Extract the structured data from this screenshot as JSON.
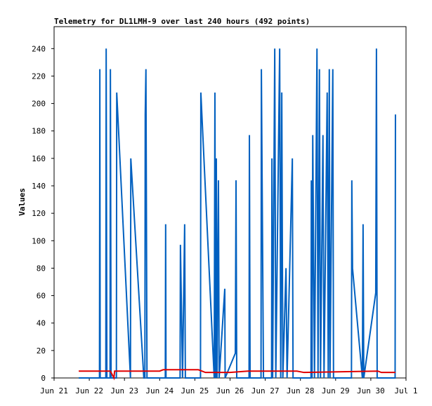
{
  "chart_data": {
    "type": "line",
    "title": "Telemetry for DL1LMH-9 over last 240 hours (492 points)",
    "y_label": "Values",
    "xlim": [
      0,
      10
    ],
    "ylim": [
      0,
      256
    ],
    "xticks": [
      {
        "value": 0,
        "label": "Jun 21"
      },
      {
        "value": 1,
        "label": "Jun 22"
      },
      {
        "value": 2,
        "label": "Jun 23"
      },
      {
        "value": 3,
        "label": "Jun 24"
      },
      {
        "value": 4,
        "label": "Jun 25"
      },
      {
        "value": 5,
        "label": "Jun 26"
      },
      {
        "value": 6,
        "label": "Jun 27"
      },
      {
        "value": 7,
        "label": "Jun 28"
      },
      {
        "value": 8,
        "label": "Jun 29"
      },
      {
        "value": 9,
        "label": "Jun 30"
      },
      {
        "value": 10,
        "label": "Jul 1"
      }
    ],
    "yticks": [
      0,
      20,
      40,
      60,
      80,
      100,
      120,
      140,
      160,
      180,
      200,
      220,
      240
    ],
    "series": [
      {
        "color": "#0060c0",
        "x": [
          0.7,
          1.29,
          1.3,
          1.31,
          1.47,
          1.48,
          1.5,
          1.59,
          1.6,
          1.62,
          1.77,
          1.78,
          2.17,
          2.18,
          2.55,
          2.58,
          2.59,
          2.61,
          2.64,
          3.16,
          3.17,
          3.18,
          3.58,
          3.59,
          3.65,
          3.71,
          3.73,
          4.16,
          4.17,
          4.55,
          4.57,
          4.59,
          4.61,
          4.63,
          4.67,
          4.69,
          4.85,
          4.86,
          5.15,
          5.17,
          5.19,
          5.54,
          5.55,
          5.57,
          5.88,
          5.89,
          5.95,
          6.18,
          6.19,
          6.21,
          6.27,
          6.3,
          6.41,
          6.44,
          6.47,
          6.5,
          6.59,
          6.62,
          6.77,
          6.79,
          7.3,
          7.31,
          7.33,
          7.35,
          7.4,
          7.47,
          7.5,
          7.54,
          7.57,
          7.64,
          7.67,
          7.76,
          7.79,
          7.82,
          7.84,
          7.92,
          7.94,
          8.45,
          8.46,
          8.48,
          8.76,
          8.78,
          8.8,
          9.14,
          9.16,
          9.18,
          9.69,
          9.7
        ],
        "values": [
          0,
          0,
          225,
          0,
          0,
          240,
          0,
          0,
          225,
          0,
          0,
          208,
          0,
          160,
          0,
          0,
          192,
          225,
          0,
          0,
          112,
          0,
          0,
          97,
          0,
          112,
          0,
          0,
          208,
          0,
          208,
          0,
          160,
          0,
          144,
          0,
          65,
          0,
          18,
          144,
          0,
          0,
          177,
          0,
          0,
          225,
          0,
          0,
          160,
          0,
          240,
          0,
          240,
          0,
          208,
          0,
          80,
          0,
          160,
          0,
          0,
          144,
          0,
          177,
          0,
          240,
          0,
          225,
          0,
          177,
          0,
          208,
          0,
          225,
          0,
          225,
          0,
          0,
          144,
          80,
          0,
          112,
          0,
          62,
          240,
          0,
          0,
          192
        ]
      },
      {
        "color": "#e00000",
        "x": [
          0.7,
          1.6,
          1.7,
          1.72,
          3.0,
          3.1,
          4.1,
          4.2,
          4.3,
          5.0,
          5.5,
          6.9,
          7.1,
          9.2,
          9.3,
          9.7
        ],
        "values": [
          5,
          5,
          0,
          5,
          5,
          6,
          6,
          5,
          4,
          4,
          5,
          5,
          4,
          5,
          4,
          4
        ]
      }
    ]
  }
}
